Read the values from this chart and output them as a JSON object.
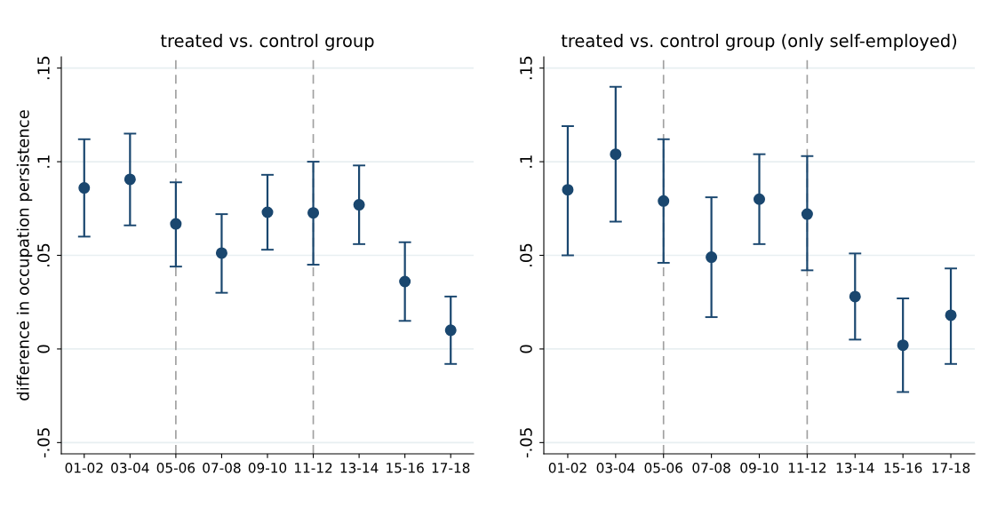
{
  "chart_data": [
    {
      "type": "scatter",
      "title": "treated vs. control group",
      "ylabel": "difference in occupation persistence",
      "categories": [
        "01-02",
        "03-04",
        "05-06",
        "07-08",
        "09-10",
        "11-12",
        "13-14",
        "15-16",
        "17-18"
      ],
      "series": [
        {
          "color": "#1a476f",
          "values": [
            0.086,
            0.0906,
            0.0668,
            0.0512,
            0.073,
            0.0727,
            0.077,
            0.036,
            0.01
          ],
          "errors": [
            [
              0.06,
              0.112
            ],
            [
              0.066,
              0.115
            ],
            [
              0.044,
              0.089
            ],
            [
              0.03,
              0.072
            ],
            [
              0.053,
              0.093
            ],
            [
              0.045,
              0.1
            ],
            [
              0.056,
              0.098
            ],
            [
              0.015,
              0.057
            ],
            [
              -0.008,
              0.028
            ]
          ]
        }
      ],
      "ylim": [
        -0.056,
        0.156
      ],
      "yticks": [
        {
          "value": -0.05,
          "label": "-.05"
        },
        0,
        {
          "value": 0.05,
          "label": ".05"
        },
        {
          "value": 0.1,
          "label": ".1"
        },
        {
          "value": 0.15,
          "label": ".15"
        }
      ],
      "ref_lines": [
        {
          "axis": "x",
          "value": "05-06",
          "color": "#a0a0a0",
          "line_style": "dashed"
        },
        {
          "axis": "x",
          "value": "11-12",
          "color": "#a0a0a0",
          "line_style": "dashed"
        }
      ],
      "grid": "y",
      "marker": "circle"
    },
    {
      "type": "scatter",
      "title": "treated vs. control group (only self-employed)",
      "categories": [
        "01-02",
        "03-04",
        "05-06",
        "07-08",
        "09-10",
        "11-12",
        "13-14",
        "15-16",
        "17-18"
      ],
      "series": [
        {
          "color": "#1a476f",
          "values": [
            0.085,
            0.104,
            0.079,
            0.049,
            0.08,
            0.072,
            0.028,
            0.002,
            0.018
          ],
          "errors": [
            [
              0.05,
              0.119
            ],
            [
              0.068,
              0.14
            ],
            [
              0.046,
              0.112
            ],
            [
              0.017,
              0.081
            ],
            [
              0.056,
              0.104
            ],
            [
              0.042,
              0.103
            ],
            [
              0.005,
              0.051
            ],
            [
              -0.023,
              0.027
            ],
            [
              -0.008,
              0.043
            ]
          ]
        }
      ],
      "ylim": [
        -0.056,
        0.156
      ],
      "yticks": [
        {
          "value": -0.05,
          "label": "-.05"
        },
        0,
        {
          "value": 0.05,
          "label": ".05"
        },
        {
          "value": 0.1,
          "label": ".1"
        },
        {
          "value": 0.15,
          "label": ".15"
        }
      ],
      "ref_lines": [
        {
          "axis": "x",
          "value": "05-06",
          "color": "#a0a0a0",
          "line_style": "dashed"
        },
        {
          "axis": "x",
          "value": "11-12",
          "color": "#a0a0a0",
          "line_style": "dashed"
        }
      ],
      "grid": "y",
      "marker": "circle"
    }
  ]
}
